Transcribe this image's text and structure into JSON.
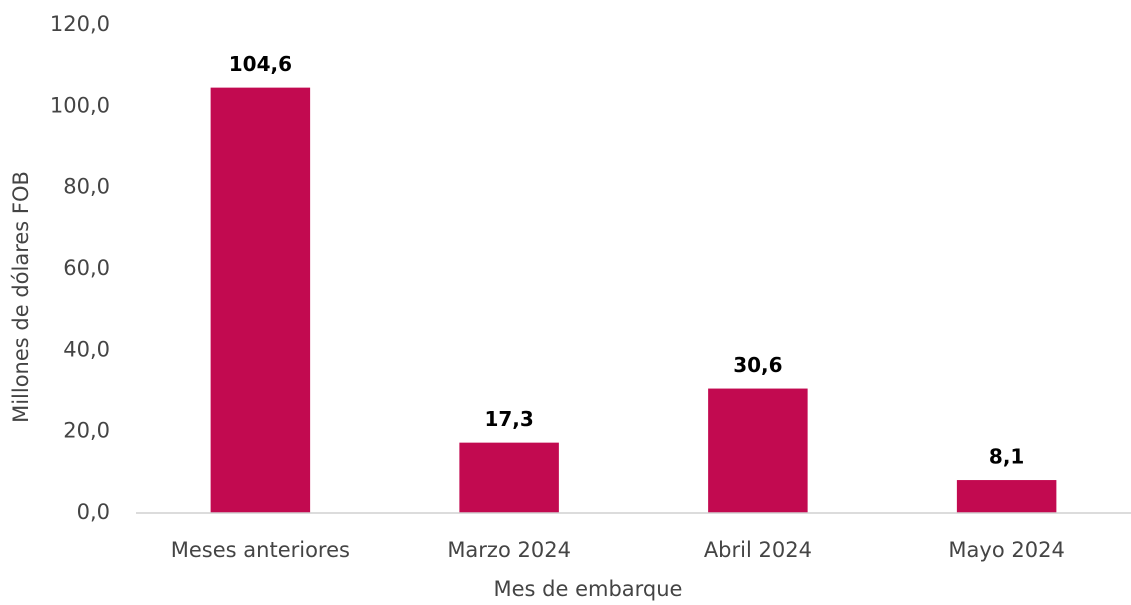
{
  "chart_data": {
    "type": "bar",
    "categories": [
      "Meses anteriores",
      "Marzo 2024",
      "Abril 2024",
      "Mayo 2024"
    ],
    "values": [
      104.6,
      17.3,
      30.6,
      8.1
    ],
    "value_labels": [
      "104,6",
      "17,3",
      "30,6",
      "8,1"
    ],
    "color": "#c20a50",
    "ylim": [
      0,
      120
    ],
    "yticks": [
      {
        "value": 0,
        "label": "0,0"
      },
      {
        "value": 20,
        "label": "20,0"
      },
      {
        "value": 40,
        "label": "40,0"
      },
      {
        "value": 60,
        "label": "60,0"
      },
      {
        "value": 80,
        "label": "80,0"
      },
      {
        "value": 100,
        "label": "100,0"
      },
      {
        "value": 120,
        "label": "120,0"
      }
    ],
    "x_label": "Mes de embarque",
    "y_label": "Millones de dólares FOB",
    "grid": false
  }
}
